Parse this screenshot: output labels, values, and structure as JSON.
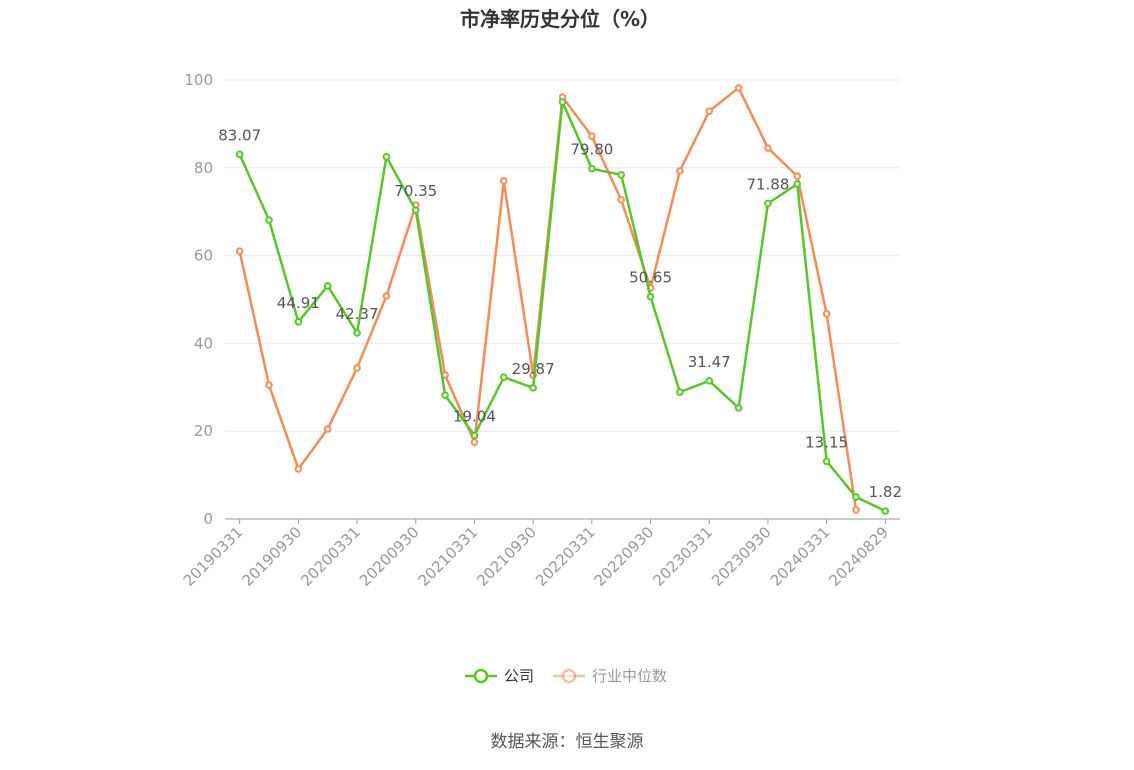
{
  "chart_data": {
    "type": "line",
    "title": "市净率历史分位（%）",
    "categories": [
      "20190331",
      null,
      "20190930",
      null,
      "20200331",
      null,
      "20200930",
      null,
      "20210331",
      null,
      "20210930",
      null,
      "20220331",
      null,
      "20220930",
      null,
      "20230331",
      null,
      "20230930",
      null,
      "20240331",
      null,
      "20240829"
    ],
    "series": [
      {
        "name": "公司",
        "color": "#5ac42d",
        "values": [
          83.07,
          68.1,
          44.91,
          53.1,
          42.37,
          82.5,
          70.35,
          28.2,
          19.04,
          32.3,
          29.87,
          95.0,
          79.8,
          78.4,
          50.65,
          28.9,
          31.47,
          25.3,
          71.88,
          76.3,
          13.15,
          5.0,
          1.82
        ],
        "value_labels": [
          "83.07",
          null,
          "44.91",
          null,
          "42.37",
          null,
          "70.35",
          null,
          "19.04",
          null,
          "29.87",
          null,
          "79.80",
          null,
          "50.65",
          null,
          "31.47",
          null,
          "71.88",
          null,
          "13.15",
          null,
          "1.82"
        ]
      },
      {
        "name": "行业中位数",
        "color": "#f28c58",
        "values": [
          61.0,
          30.5,
          11.4,
          20.5,
          34.4,
          50.8,
          71.5,
          32.8,
          17.5,
          77.0,
          32.8,
          96.1,
          87.2,
          72.7,
          52.6,
          79.3,
          92.9,
          98.2,
          84.5,
          78.1,
          46.7,
          2.1,
          null
        ]
      }
    ],
    "ylim": [
      0,
      100
    ],
    "yticks": [
      0,
      20,
      40,
      60,
      80,
      100
    ],
    "grid": true,
    "source": "数据来源：恒生聚源"
  }
}
